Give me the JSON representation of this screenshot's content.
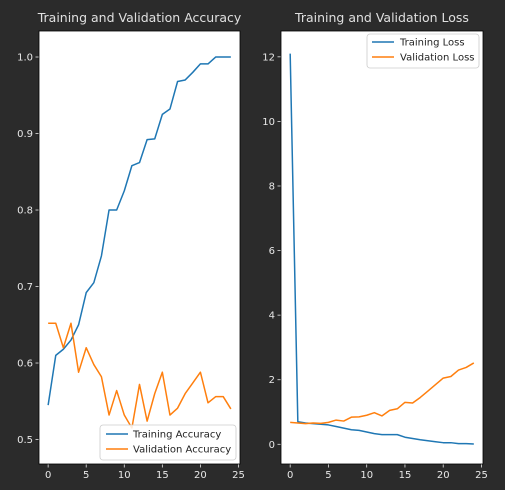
{
  "chart_data": [
    {
      "type": "line",
      "title": "Training and Validation Accuracy",
      "xlabel": "",
      "ylabel": "",
      "xlim": [
        -1.2,
        25.2
      ],
      "ylim": [
        0.468,
        1.034
      ],
      "xticks": [
        0,
        5,
        10,
        15,
        20,
        25
      ],
      "yticks": [
        0.5,
        0.6,
        0.7,
        0.8,
        0.9,
        1.0
      ],
      "xtick_labels": [
        "0",
        "5",
        "10",
        "15",
        "20",
        "25"
      ],
      "ytick_labels": [
        "0.5",
        "0.6",
        "0.7",
        "0.8",
        "0.9",
        "1.0"
      ],
      "legend_position": "lower-right",
      "grid": false,
      "x": [
        0,
        1,
        2,
        3,
        4,
        5,
        6,
        7,
        8,
        9,
        10,
        11,
        12,
        13,
        14,
        15,
        16,
        17,
        18,
        19,
        20,
        21,
        22,
        23,
        24
      ],
      "series": [
        {
          "name": "Training Accuracy",
          "color": "#1f77b4",
          "values": [
            0.545,
            0.61,
            0.618,
            0.63,
            0.65,
            0.692,
            0.705,
            0.74,
            0.8,
            0.8,
            0.825,
            0.858,
            0.862,
            0.892,
            0.893,
            0.925,
            0.932,
            0.968,
            0.97,
            0.98,
            0.991,
            0.991,
            1.0,
            1.0,
            1.0
          ]
        },
        {
          "name": "Validation Accuracy",
          "color": "#ff7f0e",
          "values": [
            0.652,
            0.652,
            0.62,
            0.652,
            0.588,
            0.62,
            0.598,
            0.582,
            0.532,
            0.564,
            0.532,
            0.515,
            0.572,
            0.524,
            0.56,
            0.588,
            0.532,
            0.541,
            0.56,
            0.574,
            0.588,
            0.548,
            0.556,
            0.556,
            0.54
          ]
        }
      ]
    },
    {
      "type": "line",
      "title": "Training and Validation Loss",
      "xlabel": "",
      "ylabel": "",
      "xlim": [
        -1.2,
        25.2
      ],
      "ylim": [
        -0.61,
        12.8
      ],
      "xticks": [
        0,
        5,
        10,
        15,
        20,
        25
      ],
      "yticks": [
        0,
        2,
        4,
        6,
        8,
        10,
        12
      ],
      "xtick_labels": [
        "0",
        "5",
        "10",
        "15",
        "20",
        "25"
      ],
      "ytick_labels": [
        "0",
        "2",
        "4",
        "6",
        "8",
        "10",
        "12"
      ],
      "legend_position": "top-right",
      "grid": false,
      "x": [
        0,
        1,
        2,
        3,
        4,
        5,
        6,
        7,
        8,
        9,
        10,
        11,
        12,
        13,
        14,
        15,
        16,
        17,
        18,
        19,
        20,
        21,
        22,
        23,
        24
      ],
      "series": [
        {
          "name": "Training Loss",
          "color": "#1f77b4",
          "values": [
            12.1,
            0.7,
            0.66,
            0.64,
            0.62,
            0.6,
            0.55,
            0.5,
            0.45,
            0.43,
            0.38,
            0.33,
            0.3,
            0.3,
            0.3,
            0.22,
            0.18,
            0.14,
            0.11,
            0.08,
            0.05,
            0.05,
            0.02,
            0.02,
            0.01
          ]
        },
        {
          "name": "Validation Loss",
          "color": "#ff7f0e",
          "values": [
            0.68,
            0.66,
            0.64,
            0.66,
            0.65,
            0.68,
            0.75,
            0.72,
            0.84,
            0.85,
            0.9,
            0.98,
            0.88,
            1.05,
            1.1,
            1.3,
            1.28,
            1.45,
            1.65,
            1.85,
            2.05,
            2.1,
            2.3,
            2.38,
            2.52
          ]
        }
      ]
    }
  ]
}
